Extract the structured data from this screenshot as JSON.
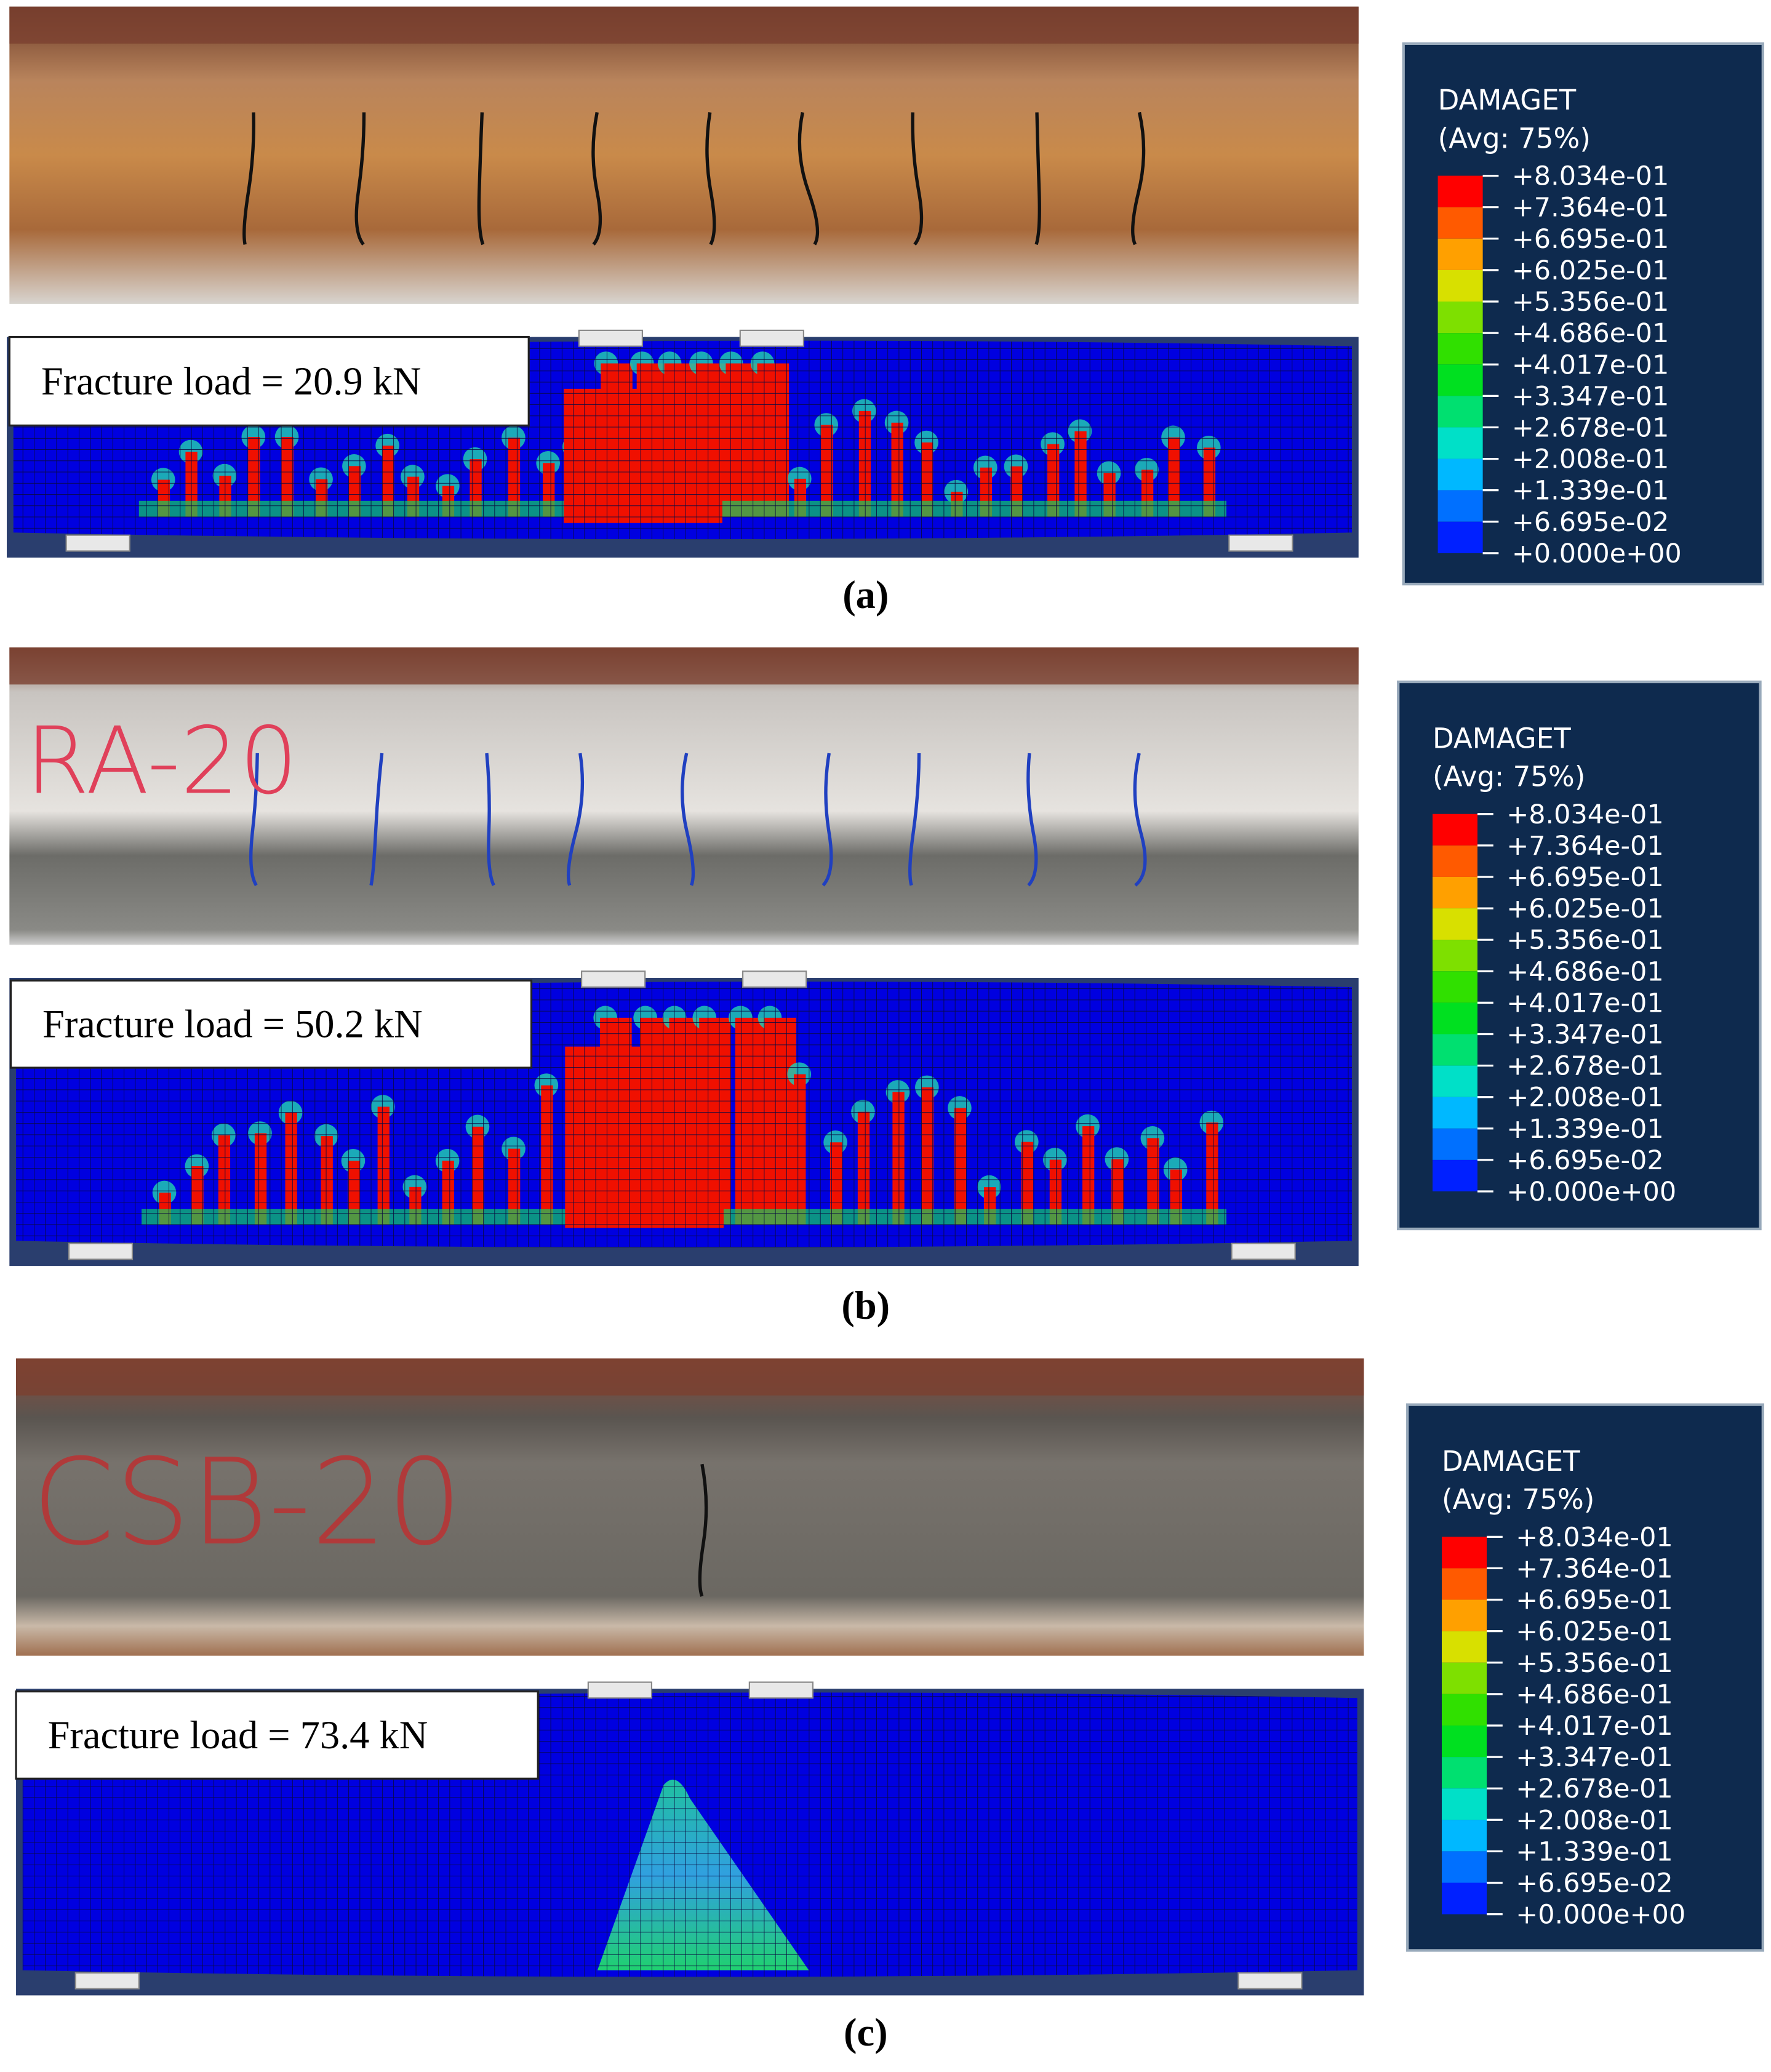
{
  "panels": [
    {
      "fracture_load": "Fracture load = 20.9 kN",
      "caption": "(a)",
      "legend": {
        "title": "DAMAGET",
        "subtitle": "(Avg: 75%)",
        "values": [
          "+8.034e-01",
          "+7.364e-01",
          "+6.695e-01",
          "+6.025e-01",
          "+5.356e-01",
          "+4.686e-01",
          "+4.017e-01",
          "+3.347e-01",
          "+2.678e-01",
          "+2.008e-01",
          "+1.339e-01",
          "+6.695e-02",
          "+0.000e+00"
        ]
      }
    },
    {
      "fracture_load": "Fracture load = 50.2 kN",
      "caption": "(b)",
      "photo_marking": "RA-20",
      "legend": {
        "title": "DAMAGET",
        "subtitle": "(Avg: 75%)",
        "values": [
          "+8.034e-01",
          "+7.364e-01",
          "+6.695e-01",
          "+6.025e-01",
          "+5.356e-01",
          "+4.686e-01",
          "+4.017e-01",
          "+3.347e-01",
          "+2.678e-01",
          "+2.008e-01",
          "+1.339e-01",
          "+6.695e-02",
          "+0.000e+00"
        ]
      }
    },
    {
      "fracture_load": "Fracture load = 73.4 kN",
      "caption": "(c)",
      "photo_marking": "CSB-20",
      "legend": {
        "title": "DAMAGET",
        "subtitle": "(Avg: 75%)",
        "values": [
          "+8.034e-01",
          "+7.364e-01",
          "+6.695e-01",
          "+6.025e-01",
          "+5.356e-01",
          "+4.686e-01",
          "+4.017e-01",
          "+3.347e-01",
          "+2.678e-01",
          "+2.008e-01",
          "+1.339e-01",
          "+6.695e-02",
          "+0.000e+00"
        ]
      }
    }
  ]
}
